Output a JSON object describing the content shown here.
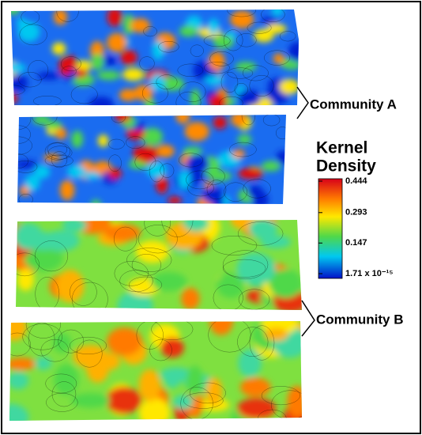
{
  "labels": {
    "community_a": "Community A",
    "community_b": "Community B"
  },
  "colorbar": {
    "title_line1": "Kernel",
    "title_line2": "Density",
    "ticks": [
      0.444,
      0.293,
      0.147,
      {
        "value": 1.71e-15,
        "label": "1.71 x 10⁻¹⁵"
      }
    ]
  }
}
